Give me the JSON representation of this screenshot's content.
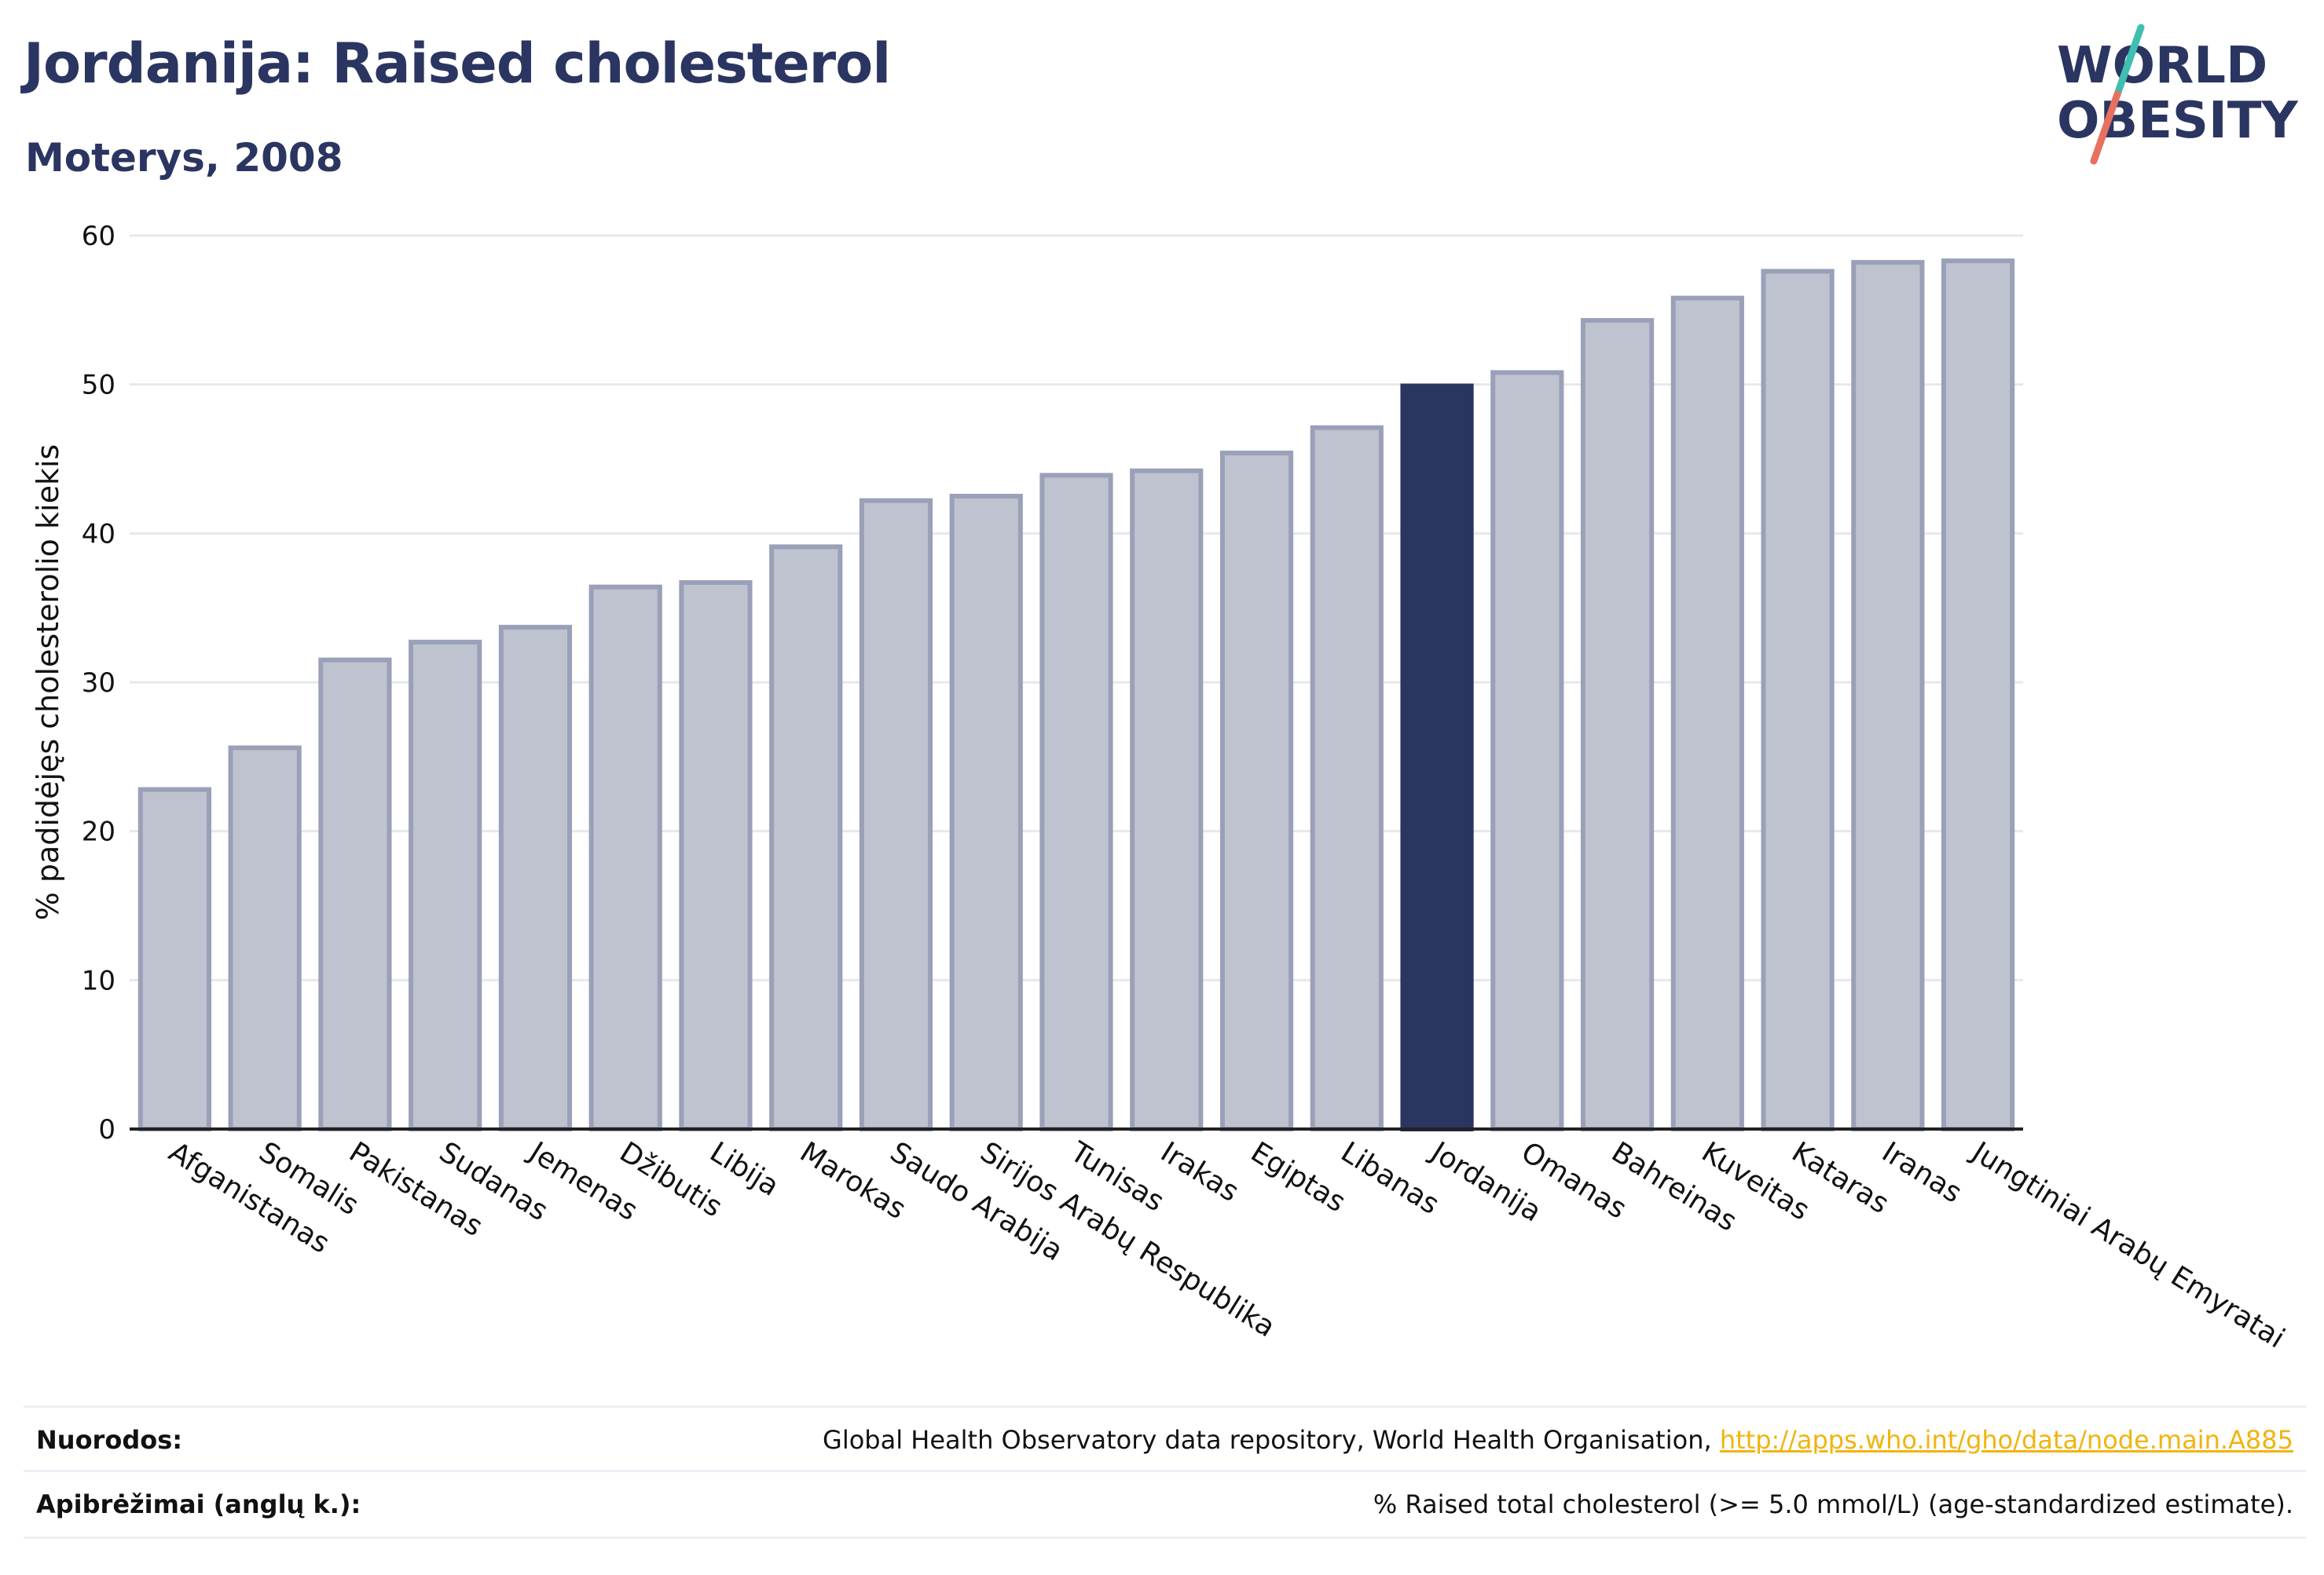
{
  "header": {
    "title": "Jordanija: Raised cholesterol",
    "subtitle": "Moterys, 2008",
    "logo_line1": "WORLD",
    "logo_line2": "OBESITY"
  },
  "colors": {
    "title": "#2b3561",
    "bar_default": "#bfc3d0",
    "bar_stroke": "#9aa0b8",
    "bar_highlight": "#2b3561",
    "link": "#f1b40e",
    "logo_teal": "#3fbfb2",
    "logo_coral": "#e8705f"
  },
  "chart_data": {
    "type": "bar",
    "title": "",
    "xlabel": "",
    "ylabel": "% padidėjęs cholesterolio kiekis",
    "ylim": [
      0,
      60
    ],
    "yticks": [
      0,
      10,
      20,
      30,
      40,
      50,
      60
    ],
    "grid": true,
    "highlight": "Jordanija",
    "categories": [
      "Afganistanas",
      "Somalis",
      "Pakistanas",
      "Sudanas",
      "Jemenas",
      "Džibutis",
      "Libija",
      "Marokas",
      "Saudo Arabija",
      "Sirijos Arabų Respublika",
      "Tunisas",
      "Irakas",
      "Egiptas",
      "Libanas",
      "Jordanija",
      "Omanas",
      "Bahreinas",
      "Kuveitas",
      "Kataras",
      "Iranas",
      "Jungtiniai Arabų Emyratai"
    ],
    "values": [
      22.8,
      25.6,
      31.5,
      32.7,
      33.7,
      36.4,
      36.7,
      39.1,
      42.2,
      42.5,
      43.9,
      44.2,
      45.4,
      47.1,
      49.9,
      50.8,
      54.3,
      55.8,
      57.6,
      58.2,
      58.3
    ]
  },
  "footer": {
    "sources_label": "Nuorodos:",
    "sources_text": "Global Health Observatory data repository, World Health Organisation, ",
    "sources_link": "http://apps.who.int/gho/data/node.main.A885",
    "definitions_label": "Apibrėžimai (anglų k.):",
    "definitions_text": "% Raised total cholesterol (>= 5.0 mmol/L) (age-standardized estimate)."
  }
}
